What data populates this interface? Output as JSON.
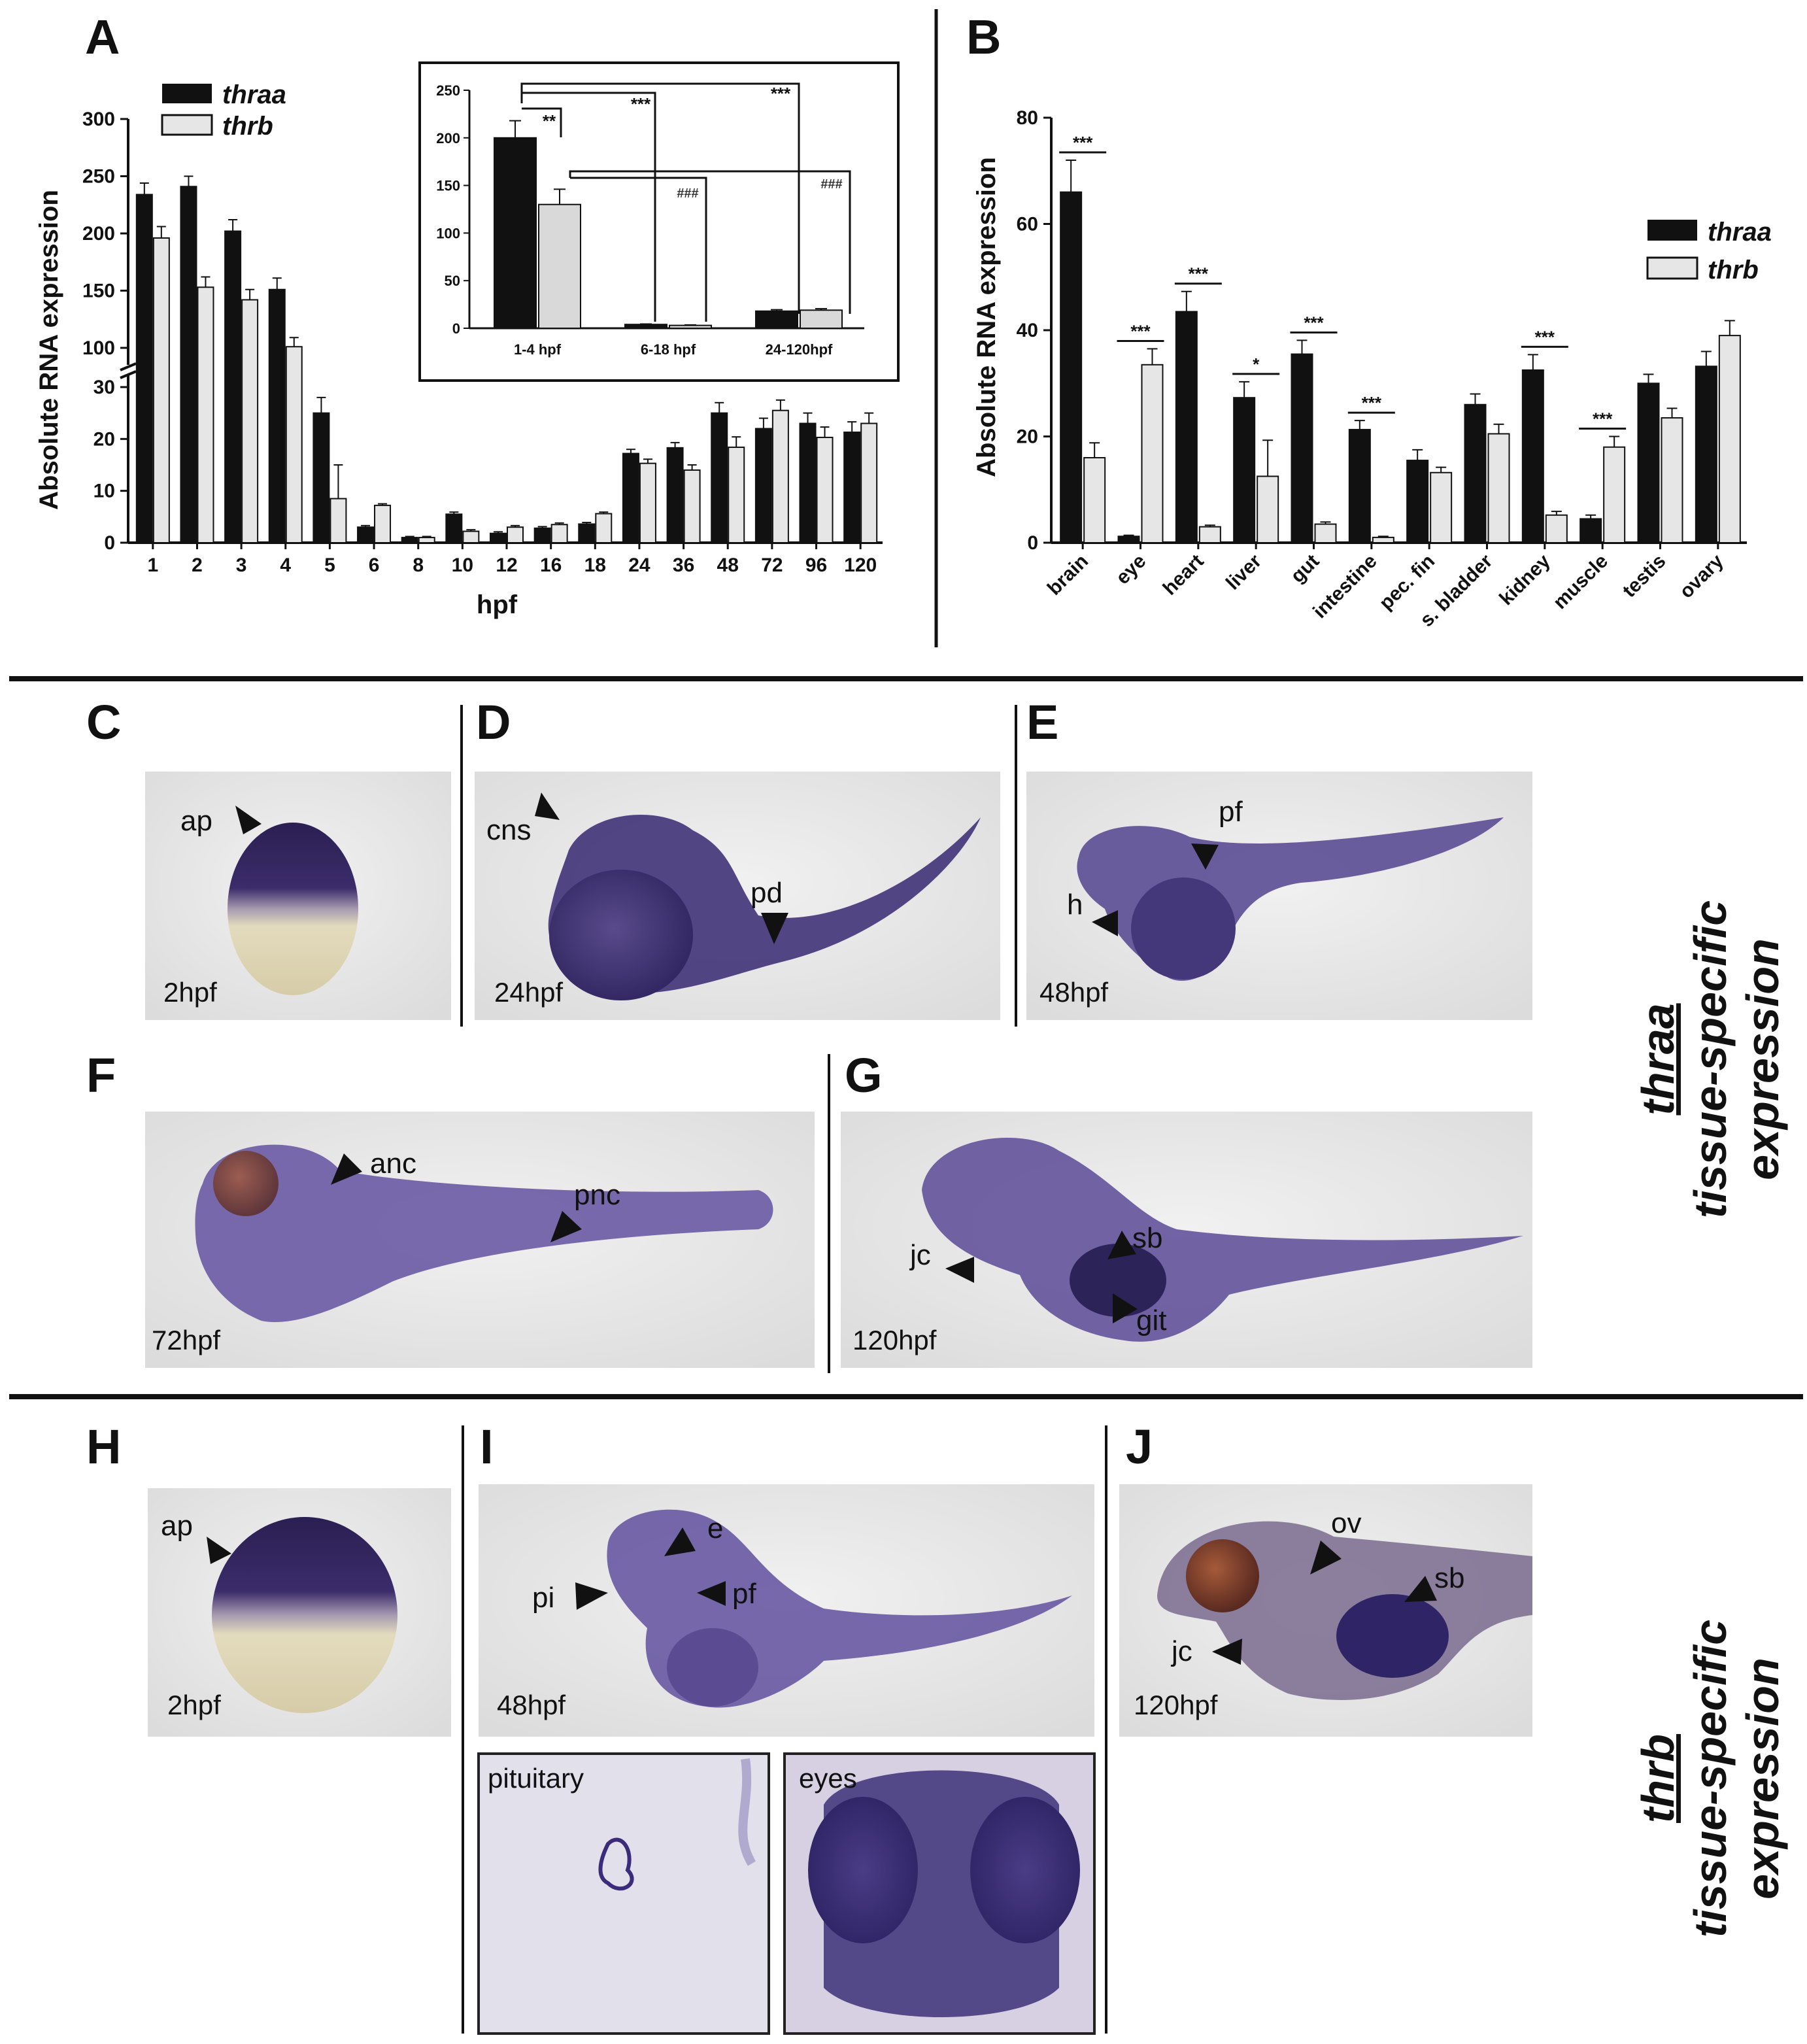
{
  "panels": {
    "A": "A",
    "B": "B",
    "C": "C",
    "D": "D",
    "E": "E",
    "F": "F",
    "G": "G",
    "H": "H",
    "I": "I",
    "J": "J"
  },
  "chart_data": [
    {
      "id": "A",
      "type": "bar",
      "ylabel": "Absolute RNA expression",
      "xlabel": "hpf",
      "categories": [
        "1",
        "2",
        "3",
        "4",
        "5",
        "6",
        "8",
        "10",
        "12",
        "16",
        "18",
        "24",
        "36",
        "48",
        "72",
        "96",
        "120"
      ],
      "series": [
        {
          "name": "thraa",
          "color": "#111111",
          "values": [
            234,
            241,
            202,
            151,
            25,
            3,
            1,
            5.5,
            1.8,
            2.8,
            3.6,
            17.2,
            18.3,
            25,
            22,
            23,
            21.3
          ],
          "errors": [
            10,
            9,
            10,
            10,
            3,
            0.3,
            0.2,
            0.4,
            0.3,
            0.3,
            0.3,
            0.8,
            1,
            2,
            2,
            2,
            2
          ]
        },
        {
          "name": "thrb",
          "color": "#e6e6e6",
          "values": [
            196,
            153,
            142,
            101,
            8.5,
            7.2,
            1,
            2.2,
            3,
            3.5,
            5.6,
            15.3,
            14,
            18.4,
            25.5,
            20.3,
            23
          ],
          "errors": [
            10,
            9,
            9,
            8,
            6.5,
            0.3,
            0.2,
            0.3,
            0.3,
            0.3,
            0.3,
            0.8,
            1,
            2,
            2,
            2,
            2
          ]
        }
      ],
      "y_axis_lower": {
        "range": [
          0,
          30
        ],
        "ticks": [
          "0",
          "10",
          "20",
          "30"
        ]
      },
      "y_axis_upper": {
        "range": [
          100,
          300
        ],
        "ticks": [
          "100",
          "150",
          "200",
          "250",
          "300"
        ]
      },
      "axis_break": true,
      "legend": "top-left"
    },
    {
      "id": "A-inset",
      "type": "bar",
      "categories": [
        "1-4 hpf",
        "6-18 hpf",
        "24-120hpf"
      ],
      "series": [
        {
          "name": "thraa",
          "color": "#111111",
          "values": [
            200,
            4,
            18
          ],
          "errors": [
            18,
            0.5,
            1.5
          ]
        },
        {
          "name": "thrb",
          "color": "#d9d9d9",
          "values": [
            130,
            3,
            19
          ],
          "errors": [
            16,
            0.5,
            1.5
          ]
        }
      ],
      "ylim": [
        0,
        250
      ],
      "yticks": [
        "0",
        "50",
        "100",
        "150",
        "200",
        "250"
      ],
      "significance": [
        "**",
        "***",
        "***",
        "###",
        "###"
      ]
    },
    {
      "id": "B",
      "type": "bar",
      "ylabel": "Absolute RNA expression",
      "categories": [
        "brain",
        "eye",
        "heart",
        "liver",
        "gut",
        "intestine",
        "pec. fin",
        "s. bladder",
        "kidney",
        "muscle",
        "testis",
        "ovary"
      ],
      "series": [
        {
          "name": "thraa",
          "color": "#111111",
          "values": [
            66,
            1.2,
            43.5,
            27.3,
            35.5,
            21.3,
            15.5,
            26,
            32.5,
            4.5,
            30,
            33.2
          ],
          "errors": [
            6,
            0.2,
            3.8,
            3,
            2.6,
            1.7,
            2,
            2,
            2.9,
            0.7,
            1.7,
            2.8
          ]
        },
        {
          "name": "thrb",
          "color": "#e6e6e6",
          "values": [
            16,
            33.5,
            3,
            12.5,
            3.5,
            1,
            13.2,
            20.5,
            5.2,
            18,
            23.5,
            39
          ],
          "errors": [
            2.8,
            3,
            0.3,
            6.8,
            0.4,
            0.2,
            1,
            1.8,
            0.7,
            2,
            1.8,
            2.8
          ]
        }
      ],
      "ylim": [
        0,
        80
      ],
      "yticks": [
        "0",
        "20",
        "40",
        "60",
        "80"
      ],
      "significance": [
        "***",
        "***",
        "***",
        "*",
        "***",
        "***",
        "***",
        "***"
      ],
      "legend": "right"
    }
  ],
  "ish": {
    "C": {
      "stage": "2hpf",
      "labels": [
        "ap"
      ]
    },
    "D": {
      "stage": "24hpf",
      "labels": [
        "cns",
        "pd"
      ]
    },
    "E": {
      "stage": "48hpf",
      "labels": [
        "pf",
        "h"
      ]
    },
    "F": {
      "stage": "72hpf",
      "labels": [
        "anc",
        "pnc"
      ]
    },
    "G": {
      "stage": "120hpf",
      "labels": [
        "jc",
        "sb",
        "git"
      ]
    },
    "H": {
      "stage": "2hpf",
      "labels": [
        "ap"
      ]
    },
    "I": {
      "stage": "48hpf",
      "labels": [
        "e",
        "pi",
        "pf"
      ]
    },
    "J": {
      "stage": "120hpf",
      "labels": [
        "ov",
        "sb",
        "jc"
      ]
    },
    "insets": {
      "pituitary": "pituitary",
      "eyes": "eyes"
    }
  },
  "side_labels": {
    "thraa": {
      "gene": "thraa",
      "line1": "tissue-specific",
      "line2": "expression"
    },
    "thrb": {
      "gene": "thrb",
      "line1": "tissue-specific",
      "line2": "expression"
    }
  },
  "colors": {
    "stain": "#3a2c6e",
    "yolk": "#d8cfae",
    "background": "#e9e9e9"
  }
}
